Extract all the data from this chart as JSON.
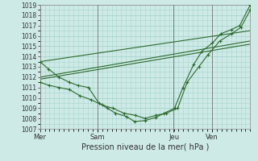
{
  "xlabel": "Pression niveau de la mer( hPa )",
  "bg_color": "#ceeae6",
  "grid_color": "#a8d4ce",
  "line_color": "#2d6a2d",
  "ylim": [
    1007,
    1019
  ],
  "yticks": [
    1007,
    1008,
    1009,
    1010,
    1011,
    1012,
    1013,
    1014,
    1015,
    1016,
    1017,
    1018,
    1019
  ],
  "day_labels": [
    "Mer",
    "Sam",
    "Jeu",
    "Ven"
  ],
  "day_positions": [
    0.0,
    0.273,
    0.636,
    0.818
  ],
  "xlim": [
    0.0,
    1.0
  ],
  "series1_x": [
    0.0,
    0.04,
    0.09,
    0.14,
    0.18,
    0.23,
    0.28,
    0.32,
    0.36,
    0.41,
    0.45,
    0.5,
    0.55,
    0.59,
    0.64,
    0.68,
    0.73,
    0.77,
    0.82,
    0.86,
    0.91,
    0.95,
    1.0
  ],
  "series1_y": [
    1013.5,
    1012.8,
    1012.0,
    1011.5,
    1011.2,
    1011.0,
    1009.5,
    1009.0,
    1008.5,
    1008.2,
    1007.7,
    1007.8,
    1008.1,
    1008.5,
    1009.0,
    1011.0,
    1013.2,
    1014.5,
    1015.3,
    1016.2,
    1016.6,
    1017.0,
    1019.0
  ],
  "series2_x": [
    0.0,
    0.045,
    0.09,
    0.14,
    0.19,
    0.245,
    0.295,
    0.345,
    0.4,
    0.455,
    0.5,
    0.55,
    0.6,
    0.655,
    0.7,
    0.755,
    0.8,
    0.855,
    0.91,
    0.955,
    1.0
  ],
  "series2_y": [
    1011.5,
    1011.2,
    1011.0,
    1010.8,
    1010.2,
    1009.8,
    1009.3,
    1009.0,
    1008.5,
    1008.3,
    1008.0,
    1008.3,
    1008.5,
    1009.0,
    1011.5,
    1013.0,
    1014.2,
    1015.5,
    1016.2,
    1016.8,
    1018.5
  ],
  "straight_lines": [
    {
      "x": [
        0.0,
        1.0
      ],
      "y": [
        1013.5,
        1016.5
      ]
    },
    {
      "x": [
        0.0,
        1.0
      ],
      "y": [
        1012.0,
        1015.5
      ]
    },
    {
      "x": [
        0.0,
        1.0
      ],
      "y": [
        1011.8,
        1015.2
      ]
    }
  ],
  "fontsize_ytick": 5.5,
  "fontsize_xtick": 6.0,
  "fontsize_xlabel": 7.0
}
